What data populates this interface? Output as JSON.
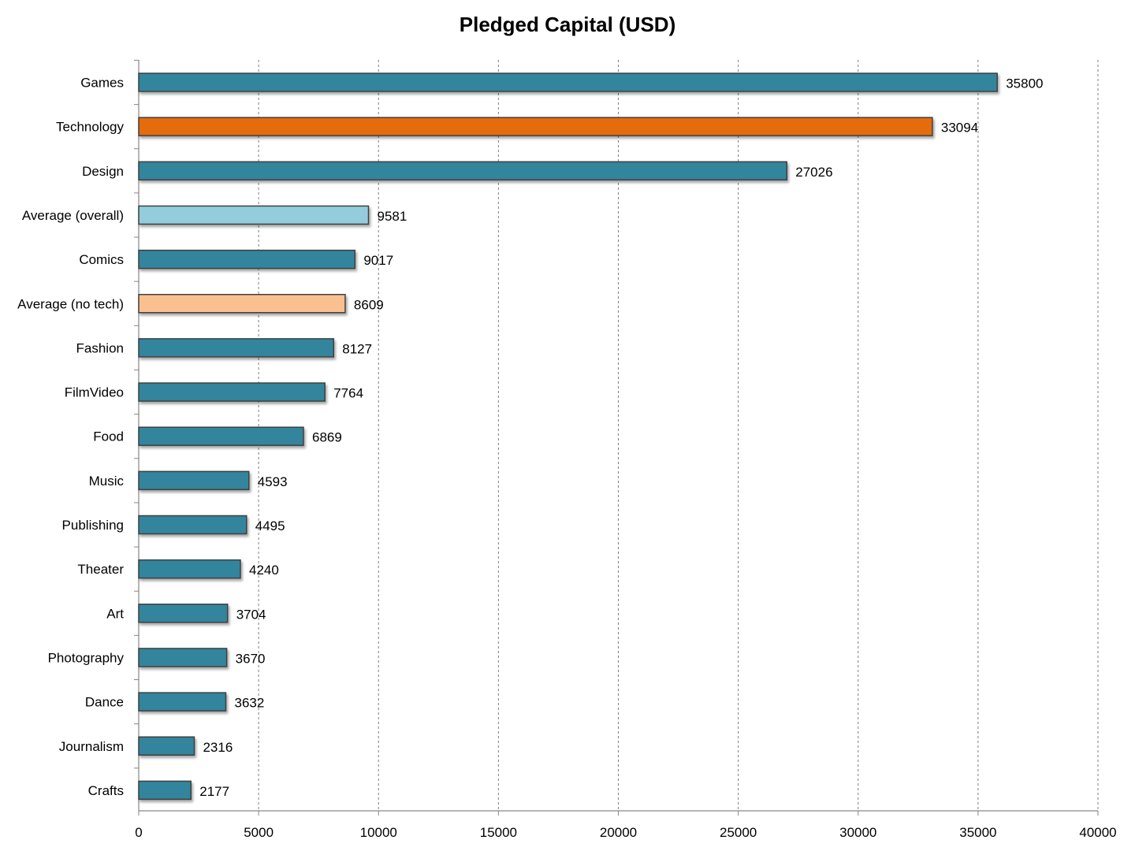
{
  "chart_data": {
    "type": "bar",
    "orientation": "horizontal",
    "title": "Pledged Capital (USD)",
    "xlabel": "",
    "ylabel": "",
    "xlim": [
      0,
      40000
    ],
    "x_ticks": [
      0,
      5000,
      10000,
      15000,
      20000,
      25000,
      30000,
      35000,
      40000
    ],
    "grid": "vertical-dashed",
    "legend": "none",
    "categories": [
      "Games",
      "Technology",
      "Design",
      "Average (overall)",
      "Comics",
      "Average (no tech)",
      "Fashion",
      "FilmVideo",
      "Food",
      "Music",
      "Publishing",
      "Theater",
      "Art",
      "Photography",
      "Dance",
      "Journalism",
      "Crafts"
    ],
    "values": [
      35800,
      33094,
      27026,
      9581,
      9017,
      8609,
      8127,
      7764,
      6869,
      4593,
      4495,
      4240,
      3704,
      3670,
      3632,
      2316,
      2177
    ],
    "bar_colors": [
      "#31859c",
      "#e46c0a",
      "#31859c",
      "#93cddd",
      "#31859c",
      "#fac090",
      "#31859c",
      "#31859c",
      "#31859c",
      "#31859c",
      "#31859c",
      "#31859c",
      "#31859c",
      "#31859c",
      "#31859c",
      "#31859c",
      "#31859c"
    ]
  },
  "colors": {
    "bar_default": "#31859c",
    "bar_highlight": "#e46c0a",
    "bar_average_overall": "#93cddd",
    "bar_average_no_tech": "#fac090",
    "bar_border": "#404040",
    "axis": "#868686",
    "grid": "#7f7f7f",
    "text": "#000000"
  }
}
